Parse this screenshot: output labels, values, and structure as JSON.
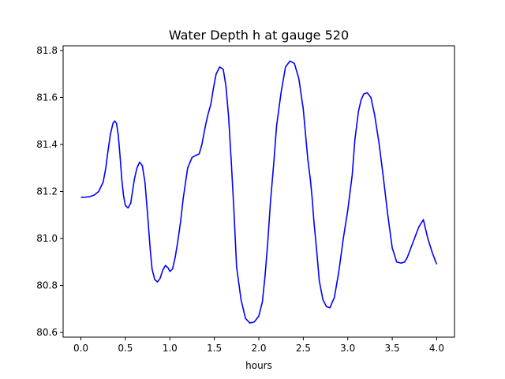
{
  "chart_data": {
    "type": "line",
    "title": "Water Depth h at gauge 520",
    "xlabel": "hours",
    "ylabel": "",
    "xlim": [
      -0.2,
      4.2
    ],
    "ylim": [
      80.58,
      81.82
    ],
    "x_ticks": [
      0.0,
      0.5,
      1.0,
      1.5,
      2.0,
      2.5,
      3.0,
      3.5,
      4.0
    ],
    "x_tick_labels": [
      "0.0",
      "0.5",
      "1.0",
      "1.5",
      "2.0",
      "2.5",
      "3.0",
      "3.5",
      "4.0"
    ],
    "y_ticks": [
      80.6,
      80.8,
      81.0,
      81.2,
      81.4,
      81.6,
      81.8
    ],
    "y_tick_labels": [
      "80.6",
      "80.8",
      "81.0",
      "81.2",
      "81.4",
      "81.6",
      "81.8"
    ],
    "grid": false,
    "line_color": "#0000ff",
    "series": [
      {
        "x": [
          0.0,
          0.05,
          0.1,
          0.15,
          0.2,
          0.25,
          0.28,
          0.3,
          0.33,
          0.36,
          0.38,
          0.4,
          0.42,
          0.44,
          0.46,
          0.48,
          0.5,
          0.53,
          0.56,
          0.58,
          0.6,
          0.63,
          0.66,
          0.69,
          0.72,
          0.75,
          0.78,
          0.8,
          0.83,
          0.86,
          0.89,
          0.92,
          0.95,
          0.98,
          1.0,
          1.03,
          1.06,
          1.09,
          1.12,
          1.15,
          1.2,
          1.25,
          1.3,
          1.33,
          1.36,
          1.4,
          1.43,
          1.46,
          1.49,
          1.52,
          1.56,
          1.6,
          1.63,
          1.66,
          1.69,
          1.72,
          1.75,
          1.8,
          1.85,
          1.9,
          1.95,
          2.0,
          2.04,
          2.07,
          2.1,
          2.13,
          2.17,
          2.2,
          2.25,
          2.3,
          2.35,
          2.4,
          2.45,
          2.5,
          2.55,
          2.58,
          2.6,
          2.62,
          2.65,
          2.68,
          2.72,
          2.76,
          2.8,
          2.85,
          2.9,
          2.95,
          3.0,
          3.05,
          3.08,
          3.12,
          3.15,
          3.18,
          3.22,
          3.26,
          3.3,
          3.35,
          3.4,
          3.45,
          3.5,
          3.55,
          3.6,
          3.64,
          3.67,
          3.7,
          3.75,
          3.8,
          3.85,
          3.9,
          3.95,
          4.0
        ],
        "y": [
          81.175,
          81.176,
          81.178,
          81.185,
          81.2,
          81.24,
          81.3,
          81.36,
          81.44,
          81.49,
          81.5,
          81.49,
          81.44,
          81.35,
          81.25,
          81.18,
          81.14,
          81.13,
          81.15,
          81.2,
          81.25,
          81.3,
          81.325,
          81.31,
          81.24,
          81.1,
          80.95,
          80.87,
          80.825,
          80.815,
          80.83,
          80.865,
          80.885,
          80.875,
          80.86,
          80.87,
          80.92,
          80.99,
          81.07,
          81.17,
          81.3,
          81.345,
          81.355,
          81.36,
          81.4,
          81.48,
          81.53,
          81.57,
          81.64,
          81.7,
          81.73,
          81.72,
          81.65,
          81.52,
          81.33,
          81.12,
          80.88,
          80.74,
          80.66,
          80.64,
          80.645,
          80.67,
          80.73,
          80.84,
          80.98,
          81.15,
          81.33,
          81.48,
          81.62,
          81.73,
          81.755,
          81.745,
          81.68,
          81.55,
          81.34,
          81.25,
          81.17,
          81.07,
          80.95,
          80.82,
          80.74,
          80.71,
          80.705,
          80.75,
          80.86,
          81.0,
          81.12,
          81.27,
          81.42,
          81.54,
          81.59,
          81.615,
          81.62,
          81.6,
          81.53,
          81.41,
          81.26,
          81.1,
          80.96,
          80.9,
          80.895,
          80.9,
          80.92,
          80.95,
          81.0,
          81.05,
          81.08,
          81.0,
          80.94,
          80.89
        ]
      }
    ]
  }
}
